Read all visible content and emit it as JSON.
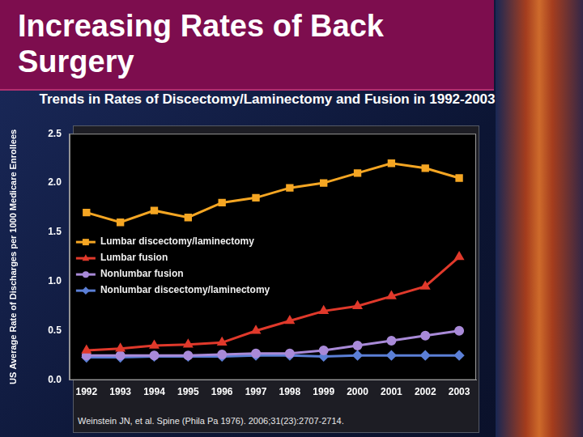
{
  "slide_title": "Increasing Rates of Back Surgery",
  "citation": "Weinstein JN, et al. Spine (Phila Pa 1976). 2006;31(23):2707-2714.",
  "chart_data": {
    "type": "line",
    "title": "Trends in Rates of Discectomy/Laminectomy and Fusion in 1992-2003",
    "y_label": "US Average Rate of Discharges per 1000 Medicare Enrollees",
    "categories": [
      "1992",
      "1993",
      "1994",
      "1995",
      "1996",
      "1997",
      "1998",
      "1999",
      "2000",
      "2001",
      "2002",
      "2003"
    ],
    "series": [
      {
        "name": "Lumbar discectomy/laminectomy",
        "color": "#f5a623",
        "marker": "square",
        "line_style": "solid",
        "values": [
          1.7,
          1.6,
          1.72,
          1.65,
          1.8,
          1.85,
          1.95,
          2.0,
          2.1,
          2.2,
          2.15,
          2.05
        ]
      },
      {
        "name": "Lumbar fusion",
        "color": "#e0392b",
        "marker": "triangle",
        "line_style": "solid",
        "values": [
          0.3,
          0.32,
          0.35,
          0.36,
          0.38,
          0.5,
          0.6,
          0.7,
          0.75,
          0.85,
          0.95,
          1.25
        ]
      },
      {
        "name": "Nonlumbar fusion",
        "color": "#a98ad8",
        "marker": "circle",
        "line_style": "solid",
        "values": [
          0.25,
          0.25,
          0.25,
          0.25,
          0.26,
          0.27,
          0.27,
          0.3,
          0.35,
          0.4,
          0.45,
          0.5
        ]
      },
      {
        "name": "Nonlumbar discectomy/laminectomy",
        "color": "#5b7fd6",
        "marker": "diamond",
        "line_style": "solid",
        "values": [
          0.23,
          0.23,
          0.24,
          0.24,
          0.24,
          0.25,
          0.25,
          0.24,
          0.25,
          0.25,
          0.25,
          0.25
        ]
      }
    ],
    "ylim": [
      0,
      2.5
    ],
    "yticks": [
      {
        "value": 0,
        "label": "0.0"
      },
      0.5,
      {
        "value": 1,
        "label": "1.0"
      },
      1.5,
      {
        "value": 2,
        "label": "2.0"
      },
      2.5
    ],
    "grid": false,
    "legend": "left"
  }
}
